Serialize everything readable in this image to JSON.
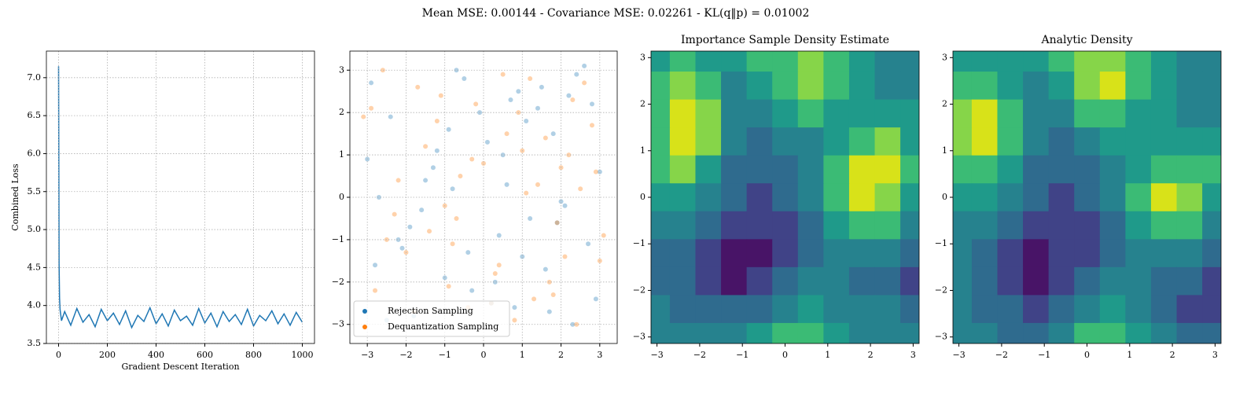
{
  "title": "Mean MSE: 0.00144 - Covariance MSE: 0.02261 - KL(q‖p) = 0.01002",
  "chart_data": [
    {
      "type": "line",
      "xlabel": "Gradient Descent Iteration",
      "ylabel": "Combined Loss",
      "grid": true,
      "x": [
        0,
        2,
        4,
        6,
        8,
        12,
        25,
        50,
        75,
        100,
        125,
        150,
        175,
        200,
        225,
        250,
        275,
        300,
        325,
        350,
        375,
        400,
        425,
        450,
        475,
        500,
        525,
        550,
        575,
        600,
        625,
        650,
        675,
        700,
        725,
        750,
        775,
        800,
        825,
        850,
        875,
        900,
        925,
        950,
        975,
        1000
      ],
      "series": [
        {
          "color": "#1f77b4",
          "values": [
            7.15,
            4.55,
            4.1,
            3.95,
            3.9,
            3.8,
            3.92,
            3.74,
            3.96,
            3.78,
            3.88,
            3.72,
            3.95,
            3.8,
            3.9,
            3.75,
            3.93,
            3.71,
            3.87,
            3.79,
            3.97,
            3.76,
            3.89,
            3.73,
            3.94,
            3.8,
            3.86,
            3.74,
            3.96,
            3.77,
            3.9,
            3.72,
            3.92,
            3.79,
            3.88,
            3.75,
            3.95,
            3.73,
            3.87,
            3.8,
            3.93,
            3.76,
            3.89,
            3.74,
            3.91,
            3.78
          ]
        }
      ],
      "xlim": [
        -50,
        1050
      ],
      "xticks": [
        0,
        200,
        400,
        600,
        800,
        1000
      ],
      "ylim": [
        3.5,
        7.35
      ],
      "yticks": [
        3.5,
        {
          "value": 4,
          "label": "4.0"
        },
        4.5,
        {
          "value": 5,
          "label": "5.0"
        },
        5.5,
        {
          "value": 6,
          "label": "6.0"
        },
        6.5,
        {
          "value": 7,
          "label": "7.0"
        }
      ]
    },
    {
      "type": "scatter",
      "grid": true,
      "legend": "lower left",
      "series": [
        {
          "name": "Rejection Sampling",
          "color": "#1f77b4",
          "x": [
            -2.9,
            -2.1,
            -1.5,
            -0.7,
            0.2,
            1.1,
            1.9,
            2.8,
            -2.5,
            -1.2,
            0.6,
            1.6,
            2.4,
            -3.0,
            -0.3,
            0.9,
            2.1,
            -1.8,
            -0.9,
            0.4,
            1.4,
            2.9,
            -2.7,
            -1.0,
            0.1,
            1.2,
            2.6,
            -2.2,
            -0.5,
            0.8,
            1.8,
            3.0,
            -1.6,
            -0.1,
            1.0,
            2.3,
            -2.4,
            -1.3,
            0.3,
            1.5,
            2.7,
            -2.8,
            -0.8,
            0.5,
            1.7,
            2.2,
            -1.9,
            -0.4,
            0.7,
            2.0
          ],
          "values": [
            2.7,
            -1.2,
            0.4,
            3.0,
            -2.5,
            1.8,
            -0.6,
            2.2,
            -2.9,
            1.1,
            0.3,
            -1.7,
            2.9,
            0.9,
            -2.2,
            2.5,
            -0.2,
            -2.8,
            1.6,
            -0.9,
            2.1,
            -2.4,
            0.0,
            -1.9,
            1.3,
            -0.5,
            3.1,
            -1.0,
            2.8,
            -2.6,
            1.5,
            0.6,
            -0.3,
            2.0,
            -1.4,
            -3.0,
            1.9,
            0.7,
            -2.0,
            2.6,
            -1.1,
            -1.6,
            0.2,
            1.0,
            -2.7,
            2.4,
            -0.7,
            -1.3,
            2.3,
            -0.1
          ]
        },
        {
          "name": "Dequantization Sampling",
          "color": "#ff7f0e",
          "x": [
            -3.1,
            -2.3,
            -1.7,
            -0.9,
            0.0,
            0.8,
            1.6,
            2.5,
            3.0,
            -2.6,
            -1.4,
            -0.2,
            1.3,
            2.2,
            -2.0,
            -0.6,
            0.5,
            1.9,
            2.8,
            -2.8,
            -1.1,
            0.3,
            1.1,
            2.4,
            -1.5,
            -0.4,
            0.9,
            2.0,
            3.1,
            -2.2,
            -0.8,
            0.6,
            1.7,
            2.6,
            -1.8,
            -0.3,
            1.4,
            2.1,
            -2.9,
            -1.0,
            0.2,
            1.2,
            2.9,
            -2.5,
            -1.2,
            0.4,
            1.8,
            2.3,
            -0.7,
            1.0
          ],
          "values": [
            1.9,
            -0.4,
            2.6,
            -2.1,
            0.8,
            -2.9,
            1.4,
            0.2,
            -1.5,
            3.0,
            -0.8,
            2.2,
            -2.4,
            1.0,
            -1.3,
            0.5,
            2.9,
            -0.6,
            1.7,
            -2.2,
            2.4,
            -1.8,
            0.1,
            -3.0,
            1.2,
            -2.6,
            2.0,
            0.7,
            -0.9,
            0.4,
            -1.1,
            1.5,
            -2.0,
            2.7,
            -2.7,
            0.9,
            0.3,
            -1.4,
            2.1,
            -0.2,
            -2.5,
            2.8,
            0.6,
            -1.0,
            1.8,
            -1.6,
            -2.3,
            2.3,
            -0.5,
            1.1
          ]
        }
      ],
      "xlim": [
        -3.45,
        3.45
      ],
      "xticks": [
        {
          "value": -3,
          "label": "−3"
        },
        {
          "value": -2,
          "label": "−2"
        },
        {
          "value": -1,
          "label": "−1"
        },
        0,
        1,
        2,
        3
      ],
      "ylim": [
        -3.45,
        3.45
      ],
      "yticks": [
        {
          "value": -3,
          "label": "−3"
        },
        {
          "value": -2,
          "label": "−2"
        },
        {
          "value": -1,
          "label": "−1"
        },
        0,
        1,
        2,
        3
      ]
    },
    {
      "type": "contour",
      "title": "Importance Sample Density Estimate",
      "colors": [
        "#481467",
        "#404387",
        "#2f6b8e",
        "#26828e",
        "#1f9a8a",
        "#3bbb75",
        "#86d549",
        "#d8e219"
      ],
      "x": [
        -3,
        -2.4,
        -1.8,
        -1.2,
        -0.6,
        0,
        0.6,
        1.2,
        1.8,
        2.4,
        3
      ],
      "y": [
        3,
        2.4,
        1.8,
        1.2,
        0.6,
        0,
        -0.6,
        -1.2,
        -1.8,
        -2.4,
        -3
      ],
      "z": [
        [
          4,
          5,
          4,
          4,
          5,
          5,
          6,
          5,
          4,
          3,
          3
        ],
        [
          5,
          6,
          5,
          3,
          4,
          5,
          6,
          5,
          4,
          3,
          3
        ],
        [
          5,
          7,
          6,
          3,
          3,
          4,
          5,
          4,
          4,
          4,
          4
        ],
        [
          5,
          7,
          6,
          3,
          2,
          3,
          3,
          4,
          5,
          6,
          4
        ],
        [
          5,
          6,
          4,
          2,
          2,
          2,
          3,
          5,
          7,
          7,
          5
        ],
        [
          4,
          4,
          3,
          2,
          1,
          2,
          3,
          5,
          7,
          6,
          4
        ],
        [
          3,
          3,
          2,
          1,
          1,
          1,
          2,
          4,
          5,
          5,
          3
        ],
        [
          2,
          2,
          1,
          0,
          0,
          1,
          2,
          3,
          3,
          3,
          2
        ],
        [
          2,
          2,
          1,
          0,
          1,
          2,
          3,
          3,
          2,
          2,
          1
        ],
        [
          3,
          2,
          2,
          2,
          2,
          3,
          4,
          3,
          3,
          3,
          2
        ],
        [
          3,
          3,
          3,
          3,
          4,
          5,
          5,
          4,
          3,
          3,
          3
        ]
      ],
      "xlim": [
        -3.14,
        3.14
      ],
      "xticks": [
        {
          "value": -3,
          "label": "−3"
        },
        {
          "value": -2,
          "label": "−2"
        },
        {
          "value": -1,
          "label": "−1"
        },
        0,
        1,
        2,
        3
      ],
      "ylim": [
        -3.14,
        3.14
      ],
      "yticks": [
        {
          "value": -3,
          "label": "−3"
        },
        {
          "value": -2,
          "label": "−2"
        },
        {
          "value": -1,
          "label": "−1"
        },
        0,
        1,
        2,
        3
      ]
    },
    {
      "type": "contour",
      "title": "Analytic Density",
      "colors": [
        "#481467",
        "#404387",
        "#2f6b8e",
        "#26828e",
        "#1f9a8a",
        "#3bbb75",
        "#86d549",
        "#d8e219"
      ],
      "x": [
        -3,
        -2.4,
        -1.8,
        -1.2,
        -0.6,
        0,
        0.6,
        1.2,
        1.8,
        2.4,
        3
      ],
      "y": [
        3,
        2.4,
        1.8,
        1.2,
        0.6,
        0,
        -0.6,
        -1.2,
        -1.8,
        -2.4,
        -3
      ],
      "z": [
        [
          4,
          4,
          4,
          4,
          5,
          6,
          6,
          5,
          4,
          3,
          3
        ],
        [
          5,
          5,
          4,
          3,
          4,
          6,
          7,
          5,
          4,
          3,
          3
        ],
        [
          6,
          7,
          5,
          3,
          3,
          5,
          5,
          4,
          4,
          3,
          3
        ],
        [
          6,
          7,
          5,
          3,
          2,
          3,
          4,
          4,
          4,
          4,
          4
        ],
        [
          5,
          5,
          4,
          2,
          2,
          2,
          3,
          4,
          5,
          5,
          5
        ],
        [
          4,
          4,
          3,
          2,
          1,
          2,
          3,
          5,
          7,
          6,
          4
        ],
        [
          3,
          3,
          2,
          1,
          1,
          1,
          2,
          4,
          5,
          5,
          3
        ],
        [
          3,
          2,
          1,
          0,
          1,
          1,
          2,
          3,
          3,
          3,
          2
        ],
        [
          3,
          2,
          1,
          0,
          1,
          2,
          3,
          3,
          2,
          2,
          1
        ],
        [
          3,
          2,
          2,
          1,
          2,
          3,
          4,
          3,
          2,
          1,
          1
        ],
        [
          3,
          3,
          2,
          2,
          3,
          5,
          5,
          4,
          3,
          2,
          2
        ]
      ],
      "xlim": [
        -3.14,
        3.14
      ],
      "xticks": [
        {
          "value": -3,
          "label": "−3"
        },
        {
          "value": -2,
          "label": "−2"
        },
        {
          "value": -1,
          "label": "−1"
        },
        0,
        1,
        2,
        3
      ],
      "ylim": [
        -3.14,
        3.14
      ],
      "yticks": [
        {
          "value": -3,
          "label": "−3"
        },
        {
          "value": -2,
          "label": "−2"
        },
        {
          "value": -1,
          "label": "−1"
        },
        0,
        1,
        2,
        3
      ]
    }
  ]
}
